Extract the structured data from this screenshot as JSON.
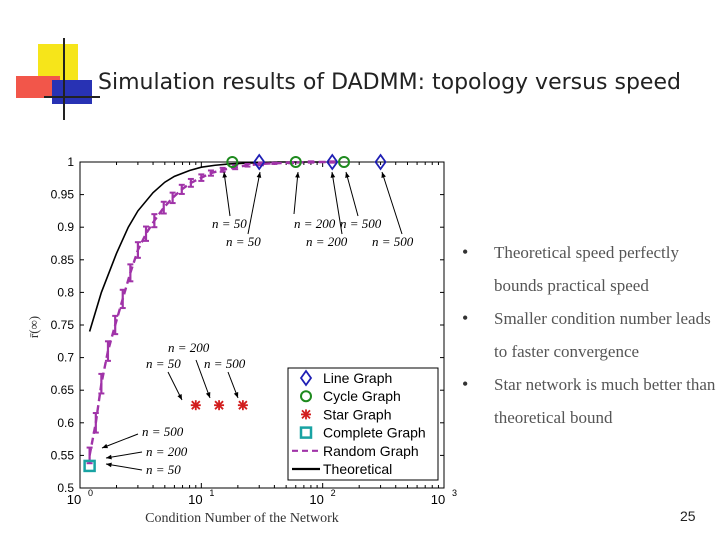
{
  "slide": {
    "title": "Simulation results of DADMM: topology versus speed",
    "page_number": "25",
    "bullets": [
      "Theoretical speed perfectly bounds practical speed",
      "Smaller condition number leads to faster convergence",
      "Star network is much better than theoretical bound"
    ]
  },
  "chart_data": {
    "type": "line",
    "xlabel": "Condition Number of the Network",
    "ylabel": "r̄(∞)",
    "xscale": "log",
    "xlim": [
      1,
      1000
    ],
    "ylim": [
      0.5,
      1.0
    ],
    "x_ticks": [
      {
        "v": 1,
        "label": "10",
        "exp": "0"
      },
      {
        "v": 10,
        "label": "10",
        "exp": "1"
      },
      {
        "v": 100,
        "label": "10",
        "exp": "2"
      },
      {
        "v": 1000,
        "label": "10",
        "exp": "3"
      }
    ],
    "y_ticks": [
      "0.5",
      "0.55",
      "0.6",
      "0.65",
      "0.7",
      "0.75",
      "0.8",
      "0.85",
      "0.9",
      "0.95",
      "1"
    ],
    "series": [
      {
        "name": "Line Graph",
        "marker": "diamond",
        "color": "#1f1fb4",
        "points": [
          [
            30,
            1.0
          ],
          [
            120,
            1.0
          ],
          [
            300,
            1.0
          ]
        ]
      },
      {
        "name": "Cycle Graph",
        "marker": "circle",
        "color": "#1e8a1e",
        "points": [
          [
            18,
            1.0
          ],
          [
            60,
            1.0
          ],
          [
            150,
            1.0
          ]
        ]
      },
      {
        "name": "Star Graph",
        "marker": "star",
        "color": "#d21e1e",
        "points": [
          [
            9,
            0.627
          ],
          [
            14,
            0.627
          ],
          [
            22,
            0.627
          ]
        ]
      },
      {
        "name": "Complete Graph",
        "marker": "square",
        "color": "#19a3a3",
        "points": [
          [
            1.2,
            0.54
          ],
          [
            1.2,
            0.537
          ],
          [
            1.2,
            0.535
          ]
        ]
      },
      {
        "name": "Random Graph",
        "line": "dashed",
        "color": "#a033a8",
        "x": [
          1.2,
          1.35,
          1.5,
          1.7,
          1.95,
          2.25,
          2.6,
          3.0,
          3.5,
          4.1,
          4.9,
          5.8,
          6.9,
          8.2,
          10,
          12,
          15,
          19,
          24,
          31,
          40,
          55,
          80,
          120
        ],
        "y": [
          0.55,
          0.6,
          0.66,
          0.71,
          0.75,
          0.79,
          0.83,
          0.865,
          0.89,
          0.91,
          0.93,
          0.945,
          0.958,
          0.968,
          0.976,
          0.983,
          0.988,
          0.992,
          0.995,
          0.997,
          0.998,
          0.999,
          1.0,
          1.0
        ],
        "err": [
          0.012,
          0.015,
          0.015,
          0.015,
          0.014,
          0.014,
          0.013,
          0.012,
          0.011,
          0.01,
          0.009,
          0.008,
          0.007,
          0.006,
          0.005,
          0.004,
          0.003,
          0.003,
          0.002,
          0.002,
          0.001,
          0.001,
          0.001,
          0.001
        ]
      },
      {
        "name": "Theoretical",
        "line": "solid",
        "color": "#000000",
        "x": [
          1.2,
          1.5,
          2,
          2.5,
          3,
          4,
          5,
          6,
          8,
          10,
          13,
          17,
          22,
          30,
          40,
          60,
          100
        ],
        "y": [
          0.74,
          0.8,
          0.86,
          0.9,
          0.925,
          0.953,
          0.969,
          0.978,
          0.987,
          0.992,
          0.995,
          0.997,
          0.998,
          0.999,
          1.0,
          1.0,
          1.0
        ]
      }
    ],
    "annotations": [
      {
        "lines": [
          "n = 50",
          "n = 50"
        ]
      },
      {
        "lines": [
          "n = 200",
          "n = 200"
        ]
      },
      {
        "lines": [
          "n = 500",
          "n = 500"
        ]
      },
      {
        "lines": [
          "n = 200",
          "n = 50",
          "n = 500"
        ]
      },
      {
        "lines": [
          "n = 500",
          "n = 200",
          "n = 50"
        ]
      }
    ],
    "legend": "lower-right"
  }
}
